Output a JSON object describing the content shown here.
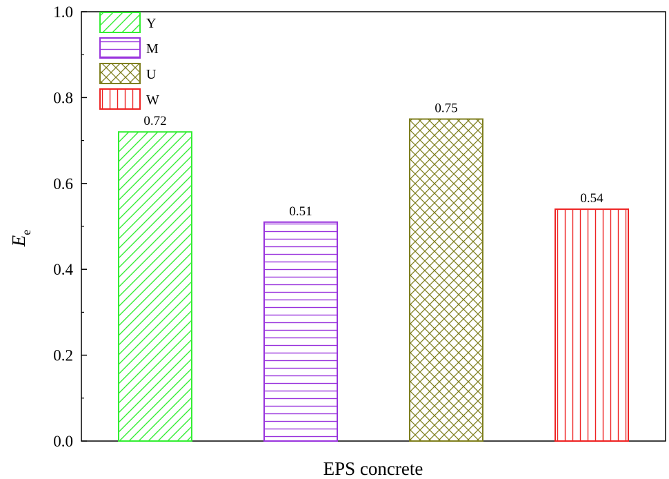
{
  "chart_data": {
    "type": "bar",
    "categories": [
      "Y",
      "M",
      "U",
      "W"
    ],
    "values": [
      0.72,
      0.51,
      0.75,
      0.54
    ],
    "data_labels": [
      "0.72",
      "0.51",
      "0.75",
      "0.54"
    ],
    "xlabel": "EPS concrete",
    "ylabel_main": "E",
    "ylabel_sub": "e",
    "ylim": [
      0.0,
      1.0
    ],
    "yticks": [
      "0.0",
      "0.2",
      "0.4",
      "0.6",
      "0.8",
      "1.0"
    ],
    "grid": false,
    "legend_position": "top-left",
    "legend": [
      {
        "name": "Y",
        "color": "#33ee33",
        "pattern": "diagonal"
      },
      {
        "name": "M",
        "color": "#9933dd",
        "pattern": "horizontal"
      },
      {
        "name": "U",
        "color": "#7f7f1f",
        "pattern": "crosshatch"
      },
      {
        "name": "W",
        "color": "#ee2222",
        "pattern": "vertical"
      }
    ]
  }
}
